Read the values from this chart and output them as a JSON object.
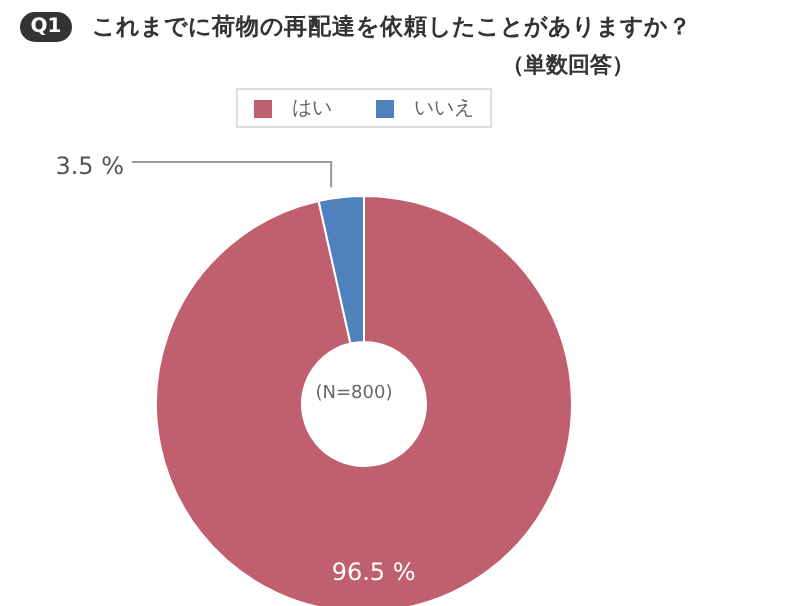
{
  "chart_data": {
    "type": "donut",
    "title": "これまでに荷物の再配達を依頼したことがありますか？",
    "subtitle": "（単数回答）",
    "annotations": [
      "Q1",
      "(N=800)"
    ],
    "categories": [
      "はい",
      "いいえ"
    ],
    "values": [
      96.5,
      3.5
    ],
    "colors": [
      "#c0606e",
      "#4f81bd"
    ],
    "value_labels": [
      "96.5 %",
      "3.5 %"
    ],
    "legend": "top"
  }
}
